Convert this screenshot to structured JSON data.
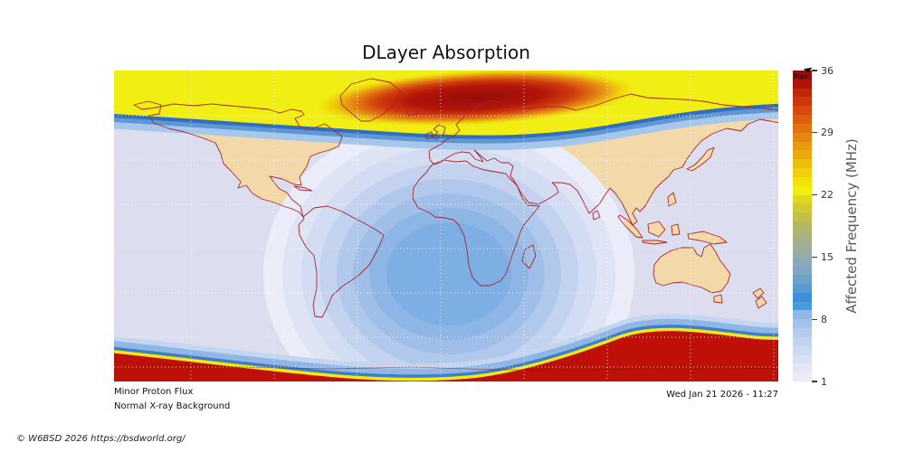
{
  "title": "DLayer Absorption",
  "status": {
    "line1": "Minor Proton Flux",
    "line2": "Normal X-ray Background"
  },
  "timestamp": "Wed Jan 21 2026 - 11:27",
  "copyright": "© W6BSD 2026 https://bsdworld.org/",
  "colorbar": {
    "label": "Affected Frequency (MHz)",
    "max_label": "Max",
    "ticks": [
      "36",
      "29",
      "22",
      "15",
      "8",
      "1"
    ],
    "segments": [
      "#ecebf9",
      "#e4e6f6",
      "#dadff4",
      "#cfd9f1",
      "#c3d2ee",
      "#b5caec",
      "#a6c1e9",
      "#93b8e6",
      "#4a9ade",
      "#3f8ed9",
      "#599ad1",
      "#6da1c9",
      "#7fa7c0",
      "#8daab4",
      "#99ada4",
      "#a2af92",
      "#abb37c",
      "#b3b763",
      "#bfbf4a",
      "#cdca33",
      "#dfd91d",
      "#f2ef0c",
      "#f3e10a",
      "#f0cf0b",
      "#edbd0d",
      "#eaaa0f",
      "#e89910",
      "#e58611",
      "#e27312",
      "#dc5f10",
      "#d54b0e",
      "#cc370b",
      "#c02409",
      "#b01408",
      "#960d0e"
    ]
  },
  "chart_data": {
    "type": "heatmap",
    "subtype": "geographic-absorption-contour-map",
    "title": "DLayer Absorption",
    "projection": "equirectangular",
    "map_extent": {
      "lon": [
        -180,
        180
      ],
      "lat": [
        -90,
        90
      ]
    },
    "colorbar_label": "Affected Frequency (MHz)",
    "colorbar_ticks_mhz": [
      1,
      8,
      15,
      22,
      29,
      36
    ],
    "colorbar_range": [
      1,
      36
    ],
    "colorbar_max_label": "Max",
    "conditions": [
      "Minor Proton Flux",
      "Normal X-ray Background"
    ],
    "timestamp": "Wed Jan 21 2026 - 11:27",
    "regions": [
      {
        "name": "north-polar-cap",
        "approx_mhz": 22,
        "peak_mhz": 36,
        "description": "Yellow high-absorption band across northern high latitudes with dark-red Max core over Greenland and Scandinavia"
      },
      {
        "name": "south-polar-cap",
        "approx_mhz": 36,
        "peak_mhz": 36,
        "description": "Dark-red Max absorption across Antarctic latitudes with yellow-orange fringe and blue transition band"
      },
      {
        "name": "dayside-absorption",
        "approx_mhz": 8,
        "peak_mhz": 8,
        "description": "Concentric blue D-layer absorption rings centered near the sub-solar point over Africa (~0-10E, ~20S)"
      },
      {
        "name": "night-side",
        "approx_mhz": 1,
        "peak_mhz": 1,
        "description": "Minimal absorption (lavender ocean, tan land) over the Pacific and East Asia night sector"
      }
    ],
    "colors": {
      "ocean_night": "#dcddee",
      "land": "#f3d9a9",
      "coastline": "#a8272c",
      "polar_yellow": "#f0ee12",
      "polar_red": "#bf1007",
      "grid": "#fff4f0"
    },
    "day_rings": [
      "#eaecf9",
      "#dfe4f5",
      "#d2dcf2",
      "#c2d2ef",
      "#b0c8ec",
      "#9fbfe9",
      "#8db5e6",
      "#7dafe4"
    ]
  }
}
